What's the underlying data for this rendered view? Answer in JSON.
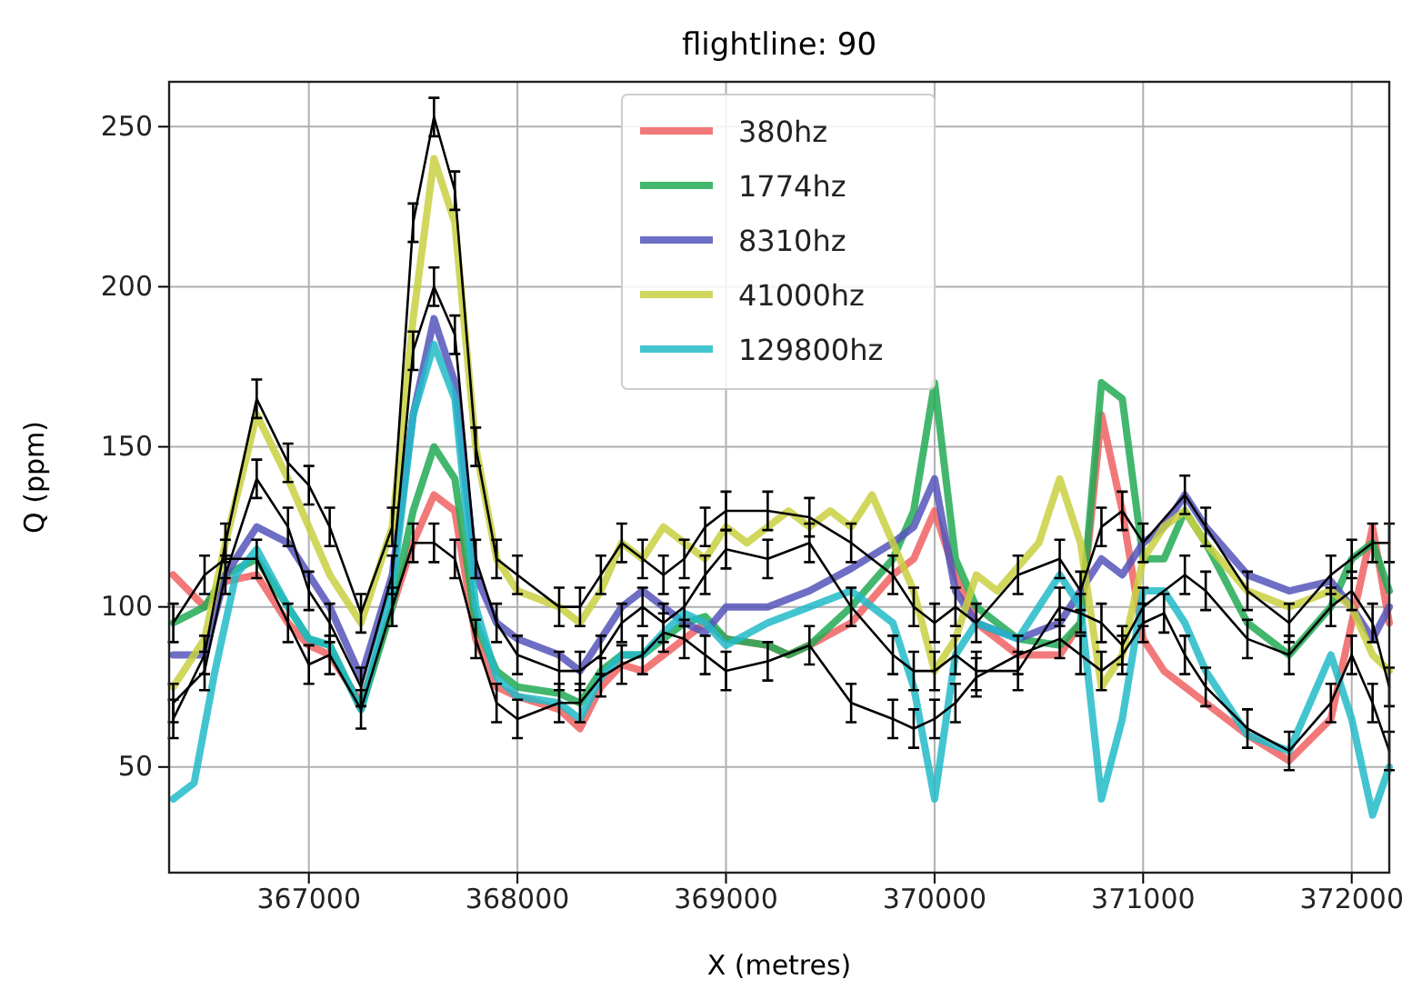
{
  "chart_data": {
    "type": "line",
    "title": "flightline: 90",
    "xlabel": "X (metres)",
    "ylabel": "Q (ppm)",
    "xlim": [
      366330,
      372180
    ],
    "ylim": [
      17,
      264
    ],
    "xticks": [
      367000,
      368000,
      369000,
      370000,
      371000,
      372000
    ],
    "yticks": [
      50,
      100,
      150,
      200,
      250
    ],
    "grid": true,
    "legend": "top",
    "marker": "none",
    "line_style": "solid",
    "series": [
      {
        "name": "380hz",
        "color": "#f06262",
        "x": [
          366350,
          366500,
          366600,
          366750,
          366900,
          367000,
          367100,
          367250,
          367400,
          367500,
          367600,
          367700,
          367800,
          367900,
          368000,
          368200,
          368300,
          368400,
          368500,
          368600,
          368700,
          368800,
          368900,
          369000,
          369200,
          369300,
          369400,
          369600,
          369800,
          369900,
          370000,
          370100,
          370200,
          370400,
          370600,
          370700,
          370800,
          370900,
          371000,
          371100,
          371200,
          371300,
          371500,
          371700,
          371900,
          372000,
          372100,
          372180
        ],
        "values": [
          110,
          100,
          108,
          110,
          95,
          88,
          85,
          70,
          100,
          120,
          135,
          130,
          90,
          75,
          72,
          68,
          62,
          75,
          82,
          80,
          85,
          90,
          95,
          90,
          88,
          85,
          88,
          95,
          110,
          115,
          130,
          110,
          95,
          85,
          85,
          95,
          160,
          130,
          90,
          80,
          75,
          70,
          60,
          52,
          65,
          95,
          125,
          95
        ]
      },
      {
        "name": "1774hz",
        "color": "#22aa55",
        "x": [
          366350,
          366500,
          366600,
          366750,
          366900,
          367000,
          367100,
          367250,
          367400,
          367500,
          367600,
          367700,
          367800,
          367900,
          368000,
          368200,
          368300,
          368400,
          368500,
          368600,
          368700,
          368800,
          368900,
          369000,
          369200,
          369300,
          369400,
          369600,
          369800,
          369900,
          370000,
          370100,
          370200,
          370400,
          370600,
          370700,
          370800,
          370900,
          371000,
          371100,
          371200,
          371300,
          371500,
          371700,
          371900,
          372000,
          372100,
          372180
        ],
        "values": [
          95,
          100,
          110,
          115,
          100,
          90,
          88,
          68,
          100,
          130,
          150,
          140,
          95,
          80,
          75,
          73,
          70,
          80,
          85,
          85,
          90,
          95,
          97,
          90,
          88,
          85,
          88,
          100,
          115,
          130,
          170,
          115,
          100,
          90,
          88,
          95,
          170,
          165,
          115,
          115,
          130,
          120,
          95,
          85,
          100,
          115,
          120,
          105
        ]
      },
      {
        "name": "8310hz",
        "color": "#5555bb",
        "x": [
          366350,
          366500,
          366600,
          366750,
          366900,
          367000,
          367100,
          367250,
          367400,
          367500,
          367600,
          367700,
          367800,
          367900,
          368000,
          368200,
          368300,
          368400,
          368500,
          368600,
          368700,
          368800,
          368900,
          369000,
          369200,
          369400,
          369600,
          369800,
          369900,
          370000,
          370100,
          370200,
          370400,
          370600,
          370700,
          370800,
          370900,
          371000,
          371100,
          371200,
          371300,
          371500,
          371700,
          371900,
          372000,
          372100,
          372180
        ],
        "values": [
          85,
          85,
          110,
          125,
          120,
          110,
          100,
          78,
          110,
          160,
          190,
          170,
          110,
          95,
          90,
          85,
          80,
          90,
          100,
          105,
          100,
          95,
          92,
          100,
          100,
          105,
          112,
          120,
          125,
          140,
          105,
          95,
          90,
          95,
          105,
          115,
          110,
          120,
          125,
          135,
          125,
          110,
          105,
          108,
          100,
          90,
          100
        ]
      },
      {
        "name": "41000hz",
        "color": "#c8d040",
        "x": [
          366350,
          366500,
          366600,
          366750,
          366900,
          367000,
          367100,
          367250,
          367400,
          367500,
          367600,
          367700,
          367800,
          367900,
          368000,
          368200,
          368300,
          368400,
          368500,
          368600,
          368700,
          368800,
          368900,
          369000,
          369100,
          369200,
          369300,
          369400,
          369500,
          369600,
          369700,
          369800,
          369900,
          370000,
          370100,
          370200,
          370300,
          370500,
          370600,
          370700,
          370800,
          370900,
          371000,
          371100,
          371200,
          371300,
          371500,
          371700,
          371900,
          372000,
          372100,
          372180
        ],
        "values": [
          75,
          90,
          120,
          160,
          140,
          125,
          110,
          95,
          125,
          190,
          240,
          220,
          150,
          115,
          105,
          100,
          95,
          105,
          120,
          115,
          125,
          120,
          115,
          125,
          120,
          125,
          130,
          125,
          130,
          125,
          135,
          120,
          105,
          80,
          90,
          110,
          105,
          120,
          140,
          120,
          75,
          85,
          115,
          125,
          130,
          120,
          105,
          100,
          105,
          100,
          85,
          80
        ]
      },
      {
        "name": "129800hz",
        "color": "#22bbc8",
        "x": [
          366350,
          366450,
          366550,
          366650,
          366750,
          366900,
          367000,
          367100,
          367250,
          367400,
          367500,
          367600,
          367700,
          367800,
          367900,
          368000,
          368200,
          368300,
          368400,
          368500,
          368600,
          368700,
          368800,
          368900,
          369000,
          369200,
          369400,
          369600,
          369800,
          369900,
          370000,
          370100,
          370200,
          370400,
          370600,
          370700,
          370800,
          370900,
          371000,
          371100,
          371200,
          371300,
          371500,
          371700,
          371900,
          372000,
          372100,
          372180
        ],
        "values": [
          40,
          45,
          80,
          110,
          118,
          100,
          90,
          88,
          68,
          105,
          160,
          182,
          165,
          100,
          78,
          72,
          70,
          65,
          78,
          85,
          85,
          92,
          98,
          95,
          88,
          95,
          100,
          105,
          95,
          75,
          40,
          85,
          95,
          90,
          110,
          100,
          40,
          65,
          105,
          105,
          95,
          80,
          60,
          55,
          85,
          65,
          35,
          50
        ]
      },
      {
        "color": "#000000",
        "x": [
          366350,
          366500,
          366600,
          366750,
          366900,
          367000,
          367100,
          367250,
          367400,
          367500,
          367600,
          367700,
          367800,
          367900,
          368000,
          368200,
          368300,
          368400,
          368500,
          368600,
          368700,
          368800,
          368900,
          369000,
          369200,
          369400,
          369600,
          369800,
          369900,
          370000,
          370100,
          370200,
          370400,
          370600,
          370700,
          370800,
          370900,
          371000,
          371200,
          371300,
          371500,
          371700,
          371900,
          372000,
          372100,
          372180
        ],
        "values": [
          65,
          85,
          120,
          165,
          145,
          138,
          125,
          98,
          125,
          220,
          253,
          230,
          150,
          115,
          110,
          100,
          100,
          110,
          120,
          115,
          110,
          115,
          125,
          130,
          130,
          128,
          120,
          110,
          100,
          95,
          100,
          95,
          110,
          115,
          105,
          125,
          130,
          120,
          135,
          125,
          105,
          95,
          110,
          115,
          120,
          120
        ],
        "errors": [
          6,
          6,
          6,
          6,
          6,
          6,
          6,
          6,
          6,
          6,
          6,
          6,
          6,
          6,
          6,
          6,
          6,
          6,
          6,
          6,
          6,
          6,
          6,
          6,
          6,
          6,
          6,
          6,
          6,
          6,
          6,
          6,
          6,
          6,
          6,
          6,
          6,
          6,
          6,
          6,
          6,
          6,
          6,
          6,
          6,
          6
        ]
      },
      {
        "color": "#000000",
        "x": [
          366350,
          366500,
          366600,
          366750,
          366900,
          367000,
          367100,
          367250,
          367400,
          367500,
          367600,
          367700,
          367800,
          367900,
          368000,
          368200,
          368300,
          368400,
          368500,
          368600,
          368700,
          368800,
          368900,
          369000,
          369200,
          369400,
          369600,
          369800,
          369900,
          370000,
          370100,
          370200,
          370400,
          370600,
          370700,
          370800,
          370900,
          371000,
          371200,
          371300,
          371500,
          371700,
          371900,
          372000,
          372100,
          372180
        ],
        "values": [
          70,
          80,
          110,
          140,
          125,
          105,
          95,
          75,
          110,
          180,
          200,
          185,
          115,
          95,
          85,
          80,
          80,
          85,
          95,
          100,
          95,
          100,
          110,
          118,
          115,
          120,
          100,
          85,
          80,
          80,
          85,
          80,
          80,
          100,
          98,
          95,
          88,
          100,
          110,
          105,
          90,
          85,
          100,
          105,
          95,
          75
        ],
        "errors": [
          6,
          6,
          6,
          6,
          6,
          6,
          6,
          6,
          6,
          6,
          6,
          6,
          6,
          6,
          6,
          6,
          6,
          6,
          6,
          6,
          6,
          6,
          6,
          6,
          6,
          6,
          6,
          6,
          6,
          6,
          6,
          6,
          6,
          6,
          6,
          6,
          6,
          6,
          6,
          6,
          6,
          6,
          6,
          6,
          6,
          6
        ]
      },
      {
        "color": "#000000",
        "x": [
          366350,
          366500,
          366600,
          366750,
          366900,
          367000,
          367100,
          367250,
          367400,
          367500,
          367600,
          367700,
          367800,
          367900,
          368000,
          368200,
          368300,
          368400,
          368500,
          368600,
          368700,
          368800,
          368900,
          369000,
          369200,
          369400,
          369600,
          369800,
          369900,
          370000,
          370100,
          370200,
          370400,
          370600,
          370700,
          370800,
          370900,
          371000,
          371100,
          371200,
          371300,
          371500,
          371700,
          371900,
          372000,
          372100,
          372180
        ],
        "values": [
          95,
          110,
          115,
          115,
          95,
          82,
          85,
          68,
          100,
          120,
          120,
          115,
          90,
          70,
          65,
          70,
          70,
          78,
          82,
          85,
          92,
          90,
          85,
          80,
          83,
          88,
          70,
          65,
          62,
          65,
          70,
          78,
          85,
          90,
          85,
          80,
          85,
          95,
          98,
          85,
          75,
          62,
          55,
          70,
          85,
          70,
          55
        ],
        "errors": [
          6,
          6,
          6,
          6,
          6,
          6,
          6,
          6,
          6,
          6,
          6,
          6,
          6,
          6,
          6,
          6,
          6,
          6,
          6,
          6,
          6,
          6,
          6,
          6,
          6,
          6,
          6,
          6,
          6,
          6,
          6,
          6,
          6,
          6,
          6,
          6,
          6,
          6,
          6,
          6,
          6,
          6,
          6,
          6,
          6,
          6,
          6
        ]
      }
    ]
  }
}
